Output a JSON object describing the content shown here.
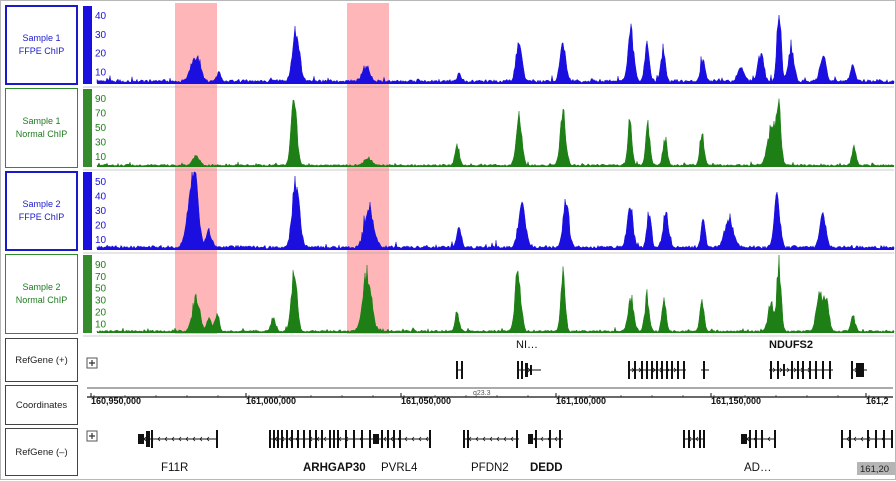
{
  "tracks": [
    {
      "line1": "Sample 1",
      "line2": "FFPE ChIP",
      "color": "#1b0fe0",
      "style": "blue",
      "ticks": [
        "40",
        "30",
        "20",
        "10"
      ]
    },
    {
      "line1": "Sample 1",
      "line2": "Normal ChIP",
      "color": "#1e7f16",
      "style": "green",
      "ticks": [
        "90",
        "70",
        "50",
        "30",
        "10"
      ]
    },
    {
      "line1": "Sample 2",
      "line2": "FFPE ChIP",
      "color": "#1b0fe0",
      "style": "blue",
      "ticks": [
        "50",
        "40",
        "30",
        "20",
        "10"
      ]
    },
    {
      "line1": "Sample 2",
      "line2": "Normal ChIP",
      "color": "#1e7f16",
      "style": "green",
      "ticks": [
        "90",
        "70",
        "50",
        "30",
        "20",
        "10"
      ]
    }
  ],
  "highlight_color": "#ffb6b9",
  "refgene_plus": {
    "label": "RefGene (+)",
    "genes": [
      "NI…",
      "NDUFS2"
    ]
  },
  "coordinates": {
    "label": "Coordinates",
    "band": "q23.3",
    "positions": [
      "160,950,000",
      "161,000,000",
      "161,050,000",
      "161,100,000",
      "161,150,000",
      "161,2"
    ],
    "end_badge": "161,20"
  },
  "refgene_minus": {
    "label": "RefGene (–)",
    "genes": [
      "F11R",
      "ARHGAP30",
      "PVRL4",
      "PFDN2",
      "DEDD",
      "AD…"
    ]
  },
  "expand_icon": "plus-box-icon"
}
